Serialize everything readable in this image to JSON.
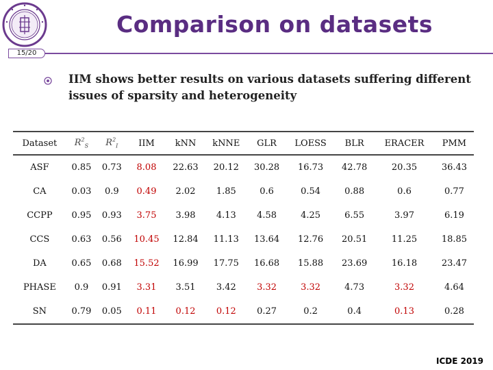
{
  "slide": {
    "title": "Comparison on datasets",
    "page_indicator": "15/20",
    "statement": "IIM shows better results on various datasets suffering different issues of sparsity and heterogeneity",
    "footer": "ICDE 2019",
    "logo_icon": "tsinghua-university-seal",
    "bullet_icon": "circle-target-bullet"
  },
  "colors": {
    "title": "#5a2d82",
    "rule": "#7a4a9e",
    "highlight": "#c00000"
  },
  "table": {
    "headers": [
      {
        "base": "Dataset"
      },
      {
        "base": "R",
        "sup": "2",
        "sub": "S"
      },
      {
        "base": "R",
        "sup": "2",
        "sub": "I"
      },
      {
        "base": "IIM"
      },
      {
        "base": "kNN"
      },
      {
        "base": "kNNE"
      },
      {
        "base": "GLR"
      },
      {
        "base": "LOESS"
      },
      {
        "base": "BLR"
      },
      {
        "base": "ERACER"
      },
      {
        "base": "PMM"
      }
    ],
    "rows": [
      {
        "cells": [
          "ASF",
          "0.85",
          "0.73",
          "8.08",
          "22.63",
          "20.12",
          "30.28",
          "16.73",
          "42.78",
          "20.35",
          "36.43"
        ],
        "highlight": [
          3
        ]
      },
      {
        "cells": [
          "CA",
          "0.03",
          "0.9",
          "0.49",
          "2.02",
          "1.85",
          "0.6",
          "0.54",
          "0.88",
          "0.6",
          "0.77"
        ],
        "highlight": [
          3
        ]
      },
      {
        "cells": [
          "CCPP",
          "0.95",
          "0.93",
          "3.75",
          "3.98",
          "4.13",
          "4.58",
          "4.25",
          "6.55",
          "3.97",
          "6.19"
        ],
        "highlight": [
          3
        ]
      },
      {
        "cells": [
          "CCS",
          "0.63",
          "0.56",
          "10.45",
          "12.84",
          "11.13",
          "13.64",
          "12.76",
          "20.51",
          "11.25",
          "18.85"
        ],
        "highlight": [
          3
        ]
      },
      {
        "cells": [
          "DA",
          "0.65",
          "0.68",
          "15.52",
          "16.99",
          "17.75",
          "16.68",
          "15.88",
          "23.69",
          "16.18",
          "23.47"
        ],
        "highlight": [
          3
        ]
      },
      {
        "cells": [
          "PHASE",
          "0.9",
          "0.91",
          "3.31",
          "3.51",
          "3.42",
          "3.32",
          "3.32",
          "4.73",
          "3.32",
          "4.64"
        ],
        "highlight": [
          3,
          6,
          7,
          9
        ]
      },
      {
        "cells": [
          "SN",
          "0.79",
          "0.05",
          "0.11",
          "0.12",
          "0.12",
          "0.27",
          "0.2",
          "0.4",
          "0.13",
          "0.28"
        ],
        "highlight": [
          3,
          4,
          5,
          9
        ]
      }
    ]
  }
}
